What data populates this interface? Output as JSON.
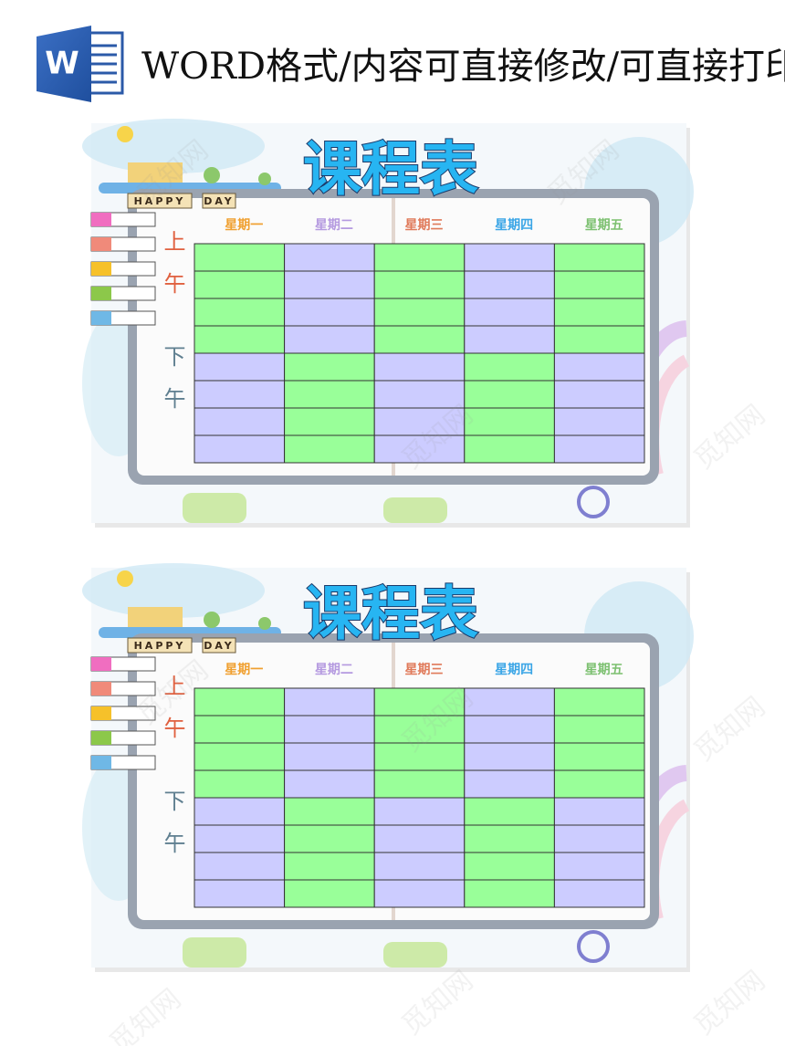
{
  "header": {
    "icon_letter": "W",
    "title": "WORD格式/内容可直接修改/可直接打印"
  },
  "pages": [
    {
      "title": "课程表",
      "banner": [
        "HAPPY",
        "DAY"
      ],
      "days": [
        "星期一",
        "星期二",
        "星期三",
        "星期四",
        "星期五"
      ],
      "sessions": [
        "上午",
        "下午"
      ]
    },
    {
      "title": "课程表",
      "banner": [
        "HAPPY",
        "DAY"
      ],
      "days": [
        "星期一",
        "星期二",
        "星期三",
        "星期四",
        "星期五"
      ],
      "sessions": [
        "上午",
        "下午"
      ]
    }
  ],
  "watermark": "觅知网"
}
